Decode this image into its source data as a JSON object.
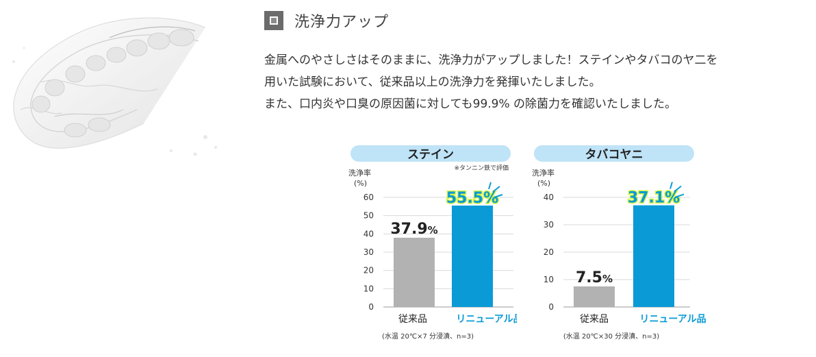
{
  "section": {
    "title": "洗浄力アップ",
    "lines": [
      "金属へのやさしさはそのままに、洗浄力がアップしました！ステインやタバコのヤ二を",
      "用いた試験において、従来品以上の洗浄力を発揮いたしました。",
      "また、口内炎や口臭の原因菌に対しても99.9% の除菌力を確認いたしました。"
    ]
  },
  "colors": {
    "previous": "#b2b2b2",
    "renewal": "#0a9ad6",
    "banner": "#bfe3f7",
    "label_outline": "#d4f542"
  },
  "chart_data": [
    {
      "type": "bar",
      "title": "ステイン",
      "note": "※タンニン鉄で評価",
      "ylabel": "洗浄率",
      "yunit": "(%)",
      "ylim": [
        0,
        60
      ],
      "yticks": [
        0,
        10,
        20,
        30,
        40,
        50,
        60
      ],
      "categories": [
        "従来品",
        "リニューアル品"
      ],
      "values": [
        37.9,
        55.5
      ],
      "value_labels": [
        "37.9",
        "55.5%"
      ],
      "footnote": "(水温 20℃×7 分浸漬、n=3)"
    },
    {
      "type": "bar",
      "title": "タバコヤニ",
      "note": "",
      "ylabel": "洗浄率",
      "yunit": "(%)",
      "ylim": [
        0,
        40
      ],
      "yticks": [
        0,
        10,
        20,
        30,
        40
      ],
      "categories": [
        "従来品",
        "リニューアル品"
      ],
      "values": [
        7.5,
        37.1
      ],
      "value_labels": [
        "7.5",
        "37.1%"
      ],
      "footnote": "(水温 20℃×30 分浸漬、n=3)"
    }
  ]
}
